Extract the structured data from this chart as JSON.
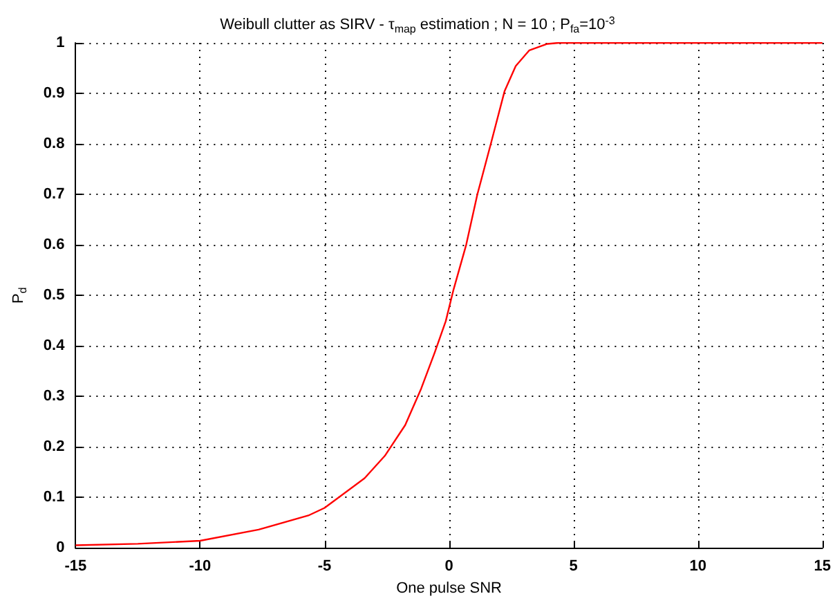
{
  "chart_data": {
    "type": "line",
    "title": "Weibull clutter as SIRV - τ$_{map}$ estimation ; N = 10 ; P$_{fa}$=10$^{-3}$",
    "xlabel": "One pulse SNR",
    "ylabel": "P$_{d}$",
    "series": [
      {
        "color": "#ff0000",
        "x": [
          -15,
          -12.5,
          -10,
          -7.65,
          -5.65,
          -5,
          -3.39,
          -2.58,
          -1.76,
          -1.12,
          -0.58,
          -0.13,
          0.18,
          0.69,
          1.14,
          1.68,
          2.23,
          2.68,
          3.22,
          3.95,
          4.4,
          15
        ],
        "values": [
          0.005,
          0.008,
          0.014,
          0.036,
          0.064,
          0.079,
          0.138,
          0.182,
          0.243,
          0.315,
          0.386,
          0.449,
          0.511,
          0.6,
          0.7,
          0.8,
          0.904,
          0.954,
          0.985,
          0.998,
          1,
          1
        ]
      }
    ],
    "xlim": [
      -15,
      15
    ],
    "xticks": [
      -15,
      -10,
      -5,
      0,
      5,
      10,
      15
    ],
    "ylim": [
      0,
      1
    ],
    "yticks": [
      0,
      0.1,
      0.2,
      0.3,
      0.4,
      0.5,
      0.6,
      0.7,
      0.8,
      0.9,
      1
    ],
    "grid": true,
    "marker": "none",
    "line_style": "solid"
  }
}
